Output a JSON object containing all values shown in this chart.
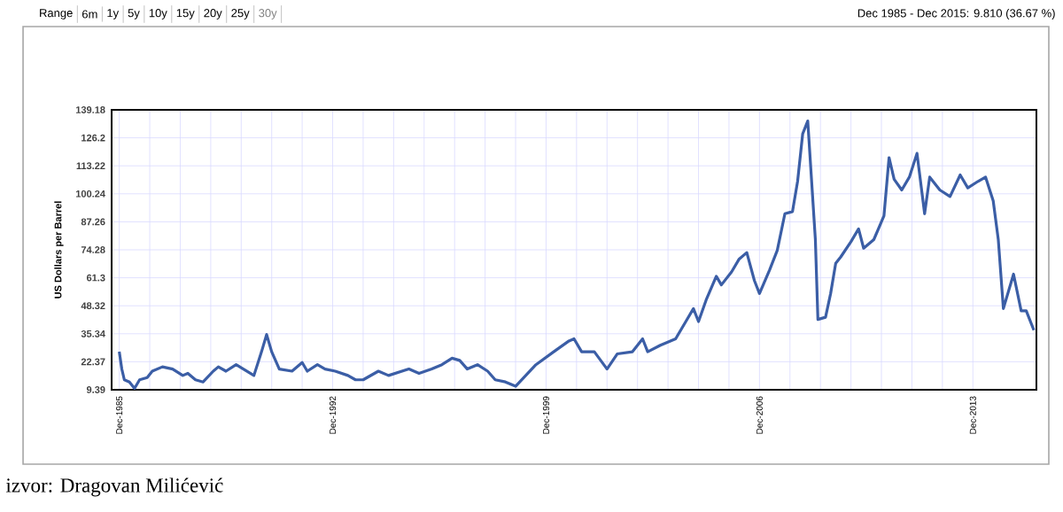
{
  "chart_data": {
    "type": "line",
    "subtitle": "Dec 1985 - Dec 2015: 9.810 (36.67 %)",
    "ylabel": "US Dollars per Barrel",
    "annotations": [
      "Range",
      "6m",
      "1y",
      "5y",
      "10y",
      "15y",
      "20y",
      "25y",
      "30y",
      "izvor: Dragovan Milićević"
    ],
    "x": [
      "1985-12",
      "1986-01",
      "1986-02",
      "1986-04",
      "1986-06",
      "1986-08",
      "1986-11",
      "1987-01",
      "1987-05",
      "1987-09",
      "1988-01",
      "1988-03",
      "1988-06",
      "1988-09",
      "1989-01",
      "1989-03",
      "1989-06",
      "1989-10",
      "1990-05",
      "1990-08",
      "1990-10",
      "1990-12",
      "1991-03",
      "1991-08",
      "1991-12",
      "1992-02",
      "1992-06",
      "1992-09",
      "1993-01",
      "1993-06",
      "1993-09",
      "1993-12",
      "1994-06",
      "1994-10",
      "1995-06",
      "1995-10",
      "1996-03",
      "1996-07",
      "1996-11",
      "1997-02",
      "1997-05",
      "1997-09",
      "1998-01",
      "1998-04",
      "1998-08",
      "1998-12",
      "1999-04",
      "1999-08",
      "2000-03",
      "2000-09",
      "2000-11",
      "2001-02",
      "2001-07",
      "2001-12",
      "2002-04",
      "2002-10",
      "2003-02",
      "2003-04",
      "2003-09",
      "2004-03",
      "2004-07",
      "2004-10",
      "2004-12",
      "2005-03",
      "2005-07",
      "2005-09",
      "2006-01",
      "2006-04",
      "2006-07",
      "2006-10",
      "2006-12",
      "2007-04",
      "2007-07",
      "2007-10",
      "2008-01",
      "2008-03",
      "2008-05",
      "2008-07",
      "2008-10",
      "2008-11",
      "2009-02",
      "2009-04",
      "2009-06",
      "2009-08",
      "2009-12",
      "2010-03",
      "2010-05",
      "2010-09",
      "2011-01",
      "2011-03",
      "2011-05",
      "2011-08",
      "2011-11",
      "2012-02",
      "2012-05",
      "2012-07",
      "2012-11",
      "2013-03",
      "2013-07",
      "2013-10",
      "2014-02",
      "2014-05",
      "2014-08",
      "2014-10",
      "2014-12",
      "2015-04",
      "2015-07",
      "2015-09",
      "2015-12"
    ],
    "series": [
      {
        "color": "#3b5ea6",
        "values": [
          27,
          19,
          14,
          13,
          10,
          14,
          15,
          18,
          20,
          19,
          16,
          17,
          14,
          13,
          18,
          20,
          18,
          21,
          16,
          27,
          35,
          27,
          19,
          18,
          22,
          18,
          21,
          19,
          18,
          16,
          14,
          14,
          18,
          16,
          19,
          17,
          19,
          21,
          24,
          23,
          19,
          21,
          18,
          14,
          13,
          11,
          16,
          21,
          27,
          32,
          33,
          27,
          27,
          19,
          26,
          27,
          33,
          27,
          30,
          33,
          41,
          47,
          41,
          51,
          62,
          58,
          64,
          70,
          73,
          60,
          54,
          65,
          74,
          91,
          92,
          106,
          128,
          134,
          79,
          42,
          43,
          54,
          68,
          71,
          78,
          84,
          75,
          79,
          90,
          117,
          107,
          102,
          108,
          119,
          91,
          108,
          102,
          99,
          109,
          103,
          106,
          108,
          97,
          79,
          47,
          63,
          46,
          46,
          37
        ]
      }
    ],
    "xlim": [
      "1985-09",
      "2016-01"
    ],
    "xticks": [
      {
        "value": "1985-12",
        "label": "Dec-1985"
      },
      {
        "value": "1992-12",
        "label": "Dec-1992"
      },
      {
        "value": "1999-12",
        "label": "Dec-1999"
      },
      {
        "value": "2006-12",
        "label": "Dec-2006"
      },
      {
        "value": "2013-12",
        "label": "Dec-2013"
      }
    ],
    "ylim": [
      9.39,
      139.18
    ],
    "yticks": [
      9.39,
      22.37,
      35.34,
      48.32,
      61.3,
      74.28,
      87.26,
      100.24,
      113.22,
      126.2,
      139.18
    ],
    "grid": true,
    "marker": "none",
    "line_style": "solid"
  }
}
